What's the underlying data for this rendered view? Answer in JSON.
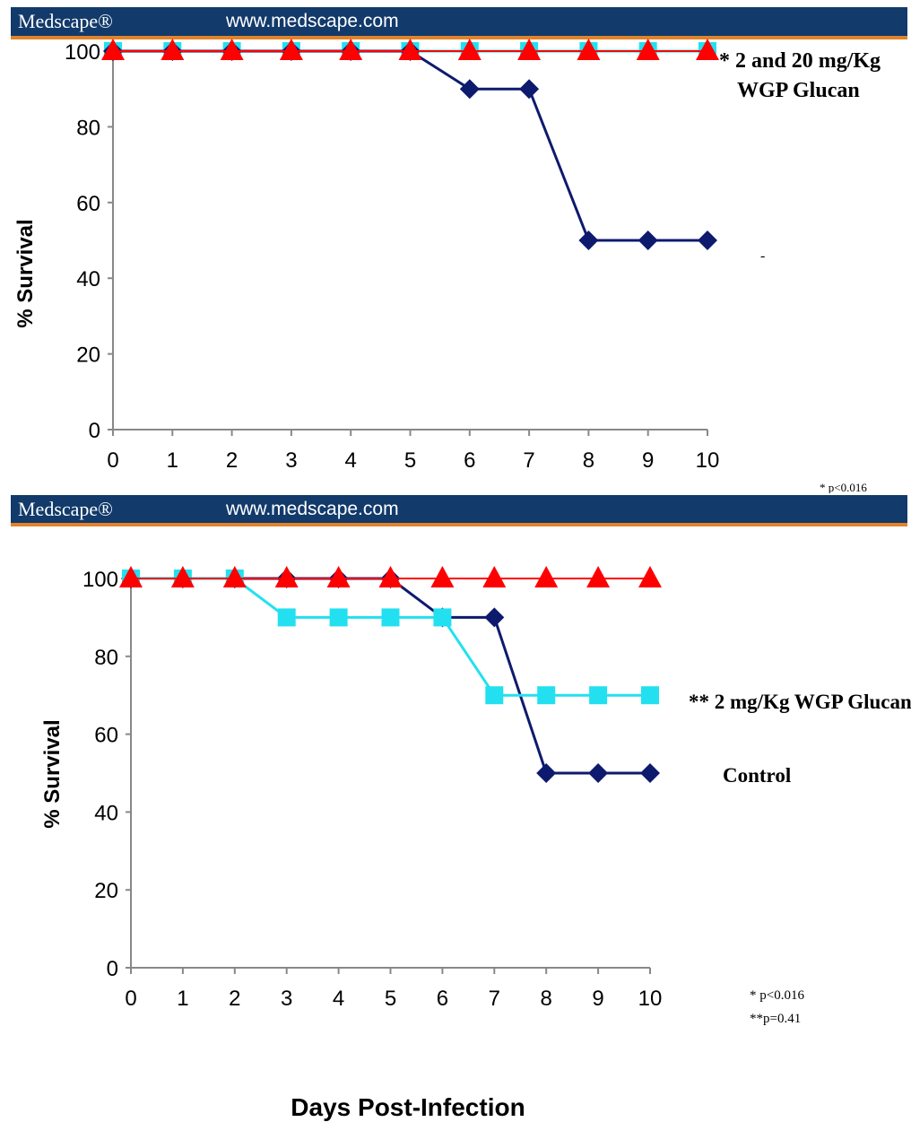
{
  "colors": {
    "banner_bg": "#123a6b",
    "banner_stripe": "#e2832a",
    "axis": "#888888",
    "control": "#0d1a6e",
    "low_dose": "#22e0f0",
    "high_dose": "#ff0000"
  },
  "banners": [
    {
      "brand": "Medscape®",
      "url": "www.medscape.com"
    },
    {
      "brand": "Medscape®",
      "url": "www.medscape.com"
    }
  ],
  "chart_data": [
    {
      "type": "line",
      "ylabel": "% Survival",
      "xlabel": "",
      "x": [
        0,
        1,
        2,
        3,
        4,
        5,
        6,
        7,
        8,
        9,
        10
      ],
      "xlim": [
        0,
        10
      ],
      "ylim": [
        0,
        100
      ],
      "yticks": [
        0,
        20,
        40,
        60,
        80,
        100
      ],
      "series": [
        {
          "marker": "square",
          "color": "#22e0f0",
          "values": [
            100,
            100,
            100,
            100,
            100,
            100,
            100,
            100,
            100,
            100,
            100
          ]
        },
        {
          "marker": "diamond",
          "color": "#0d1a6e",
          "values": [
            100,
            100,
            100,
            100,
            100,
            100,
            90,
            90,
            50,
            50,
            50
          ]
        },
        {
          "marker": "triangle",
          "color": "#ff0000",
          "values": [
            100,
            100,
            100,
            100,
            100,
            100,
            100,
            100,
            100,
            100,
            100
          ]
        }
      ],
      "annotations": [
        "* 2 and 20 mg/Kg",
        "WGP Glucan",
        "-",
        "*  p<0.016"
      ]
    },
    {
      "type": "line",
      "ylabel": "% Survival",
      "xlabel": "Days Post-Infection",
      "x": [
        0,
        1,
        2,
        3,
        4,
        5,
        6,
        7,
        8,
        9,
        10
      ],
      "xlim": [
        0,
        10
      ],
      "ylim": [
        0,
        100
      ],
      "yticks": [
        0,
        20,
        40,
        60,
        80,
        100
      ],
      "series": [
        {
          "name": "Control",
          "marker": "diamond",
          "color": "#0d1a6e",
          "values": [
            100,
            100,
            100,
            100,
            100,
            100,
            90,
            90,
            50,
            50,
            50
          ]
        },
        {
          "name": "** 2 mg/Kg WGP Glucan",
          "marker": "square",
          "color": "#22e0f0",
          "values": [
            100,
            100,
            100,
            90,
            90,
            90,
            90,
            70,
            70,
            70,
            70
          ]
        },
        {
          "marker": "triangle",
          "color": "#ff0000",
          "values": [
            100,
            100,
            100,
            100,
            100,
            100,
            100,
            100,
            100,
            100,
            100
          ]
        }
      ],
      "annotations": [
        "*  p<0.016",
        "**p=0.41"
      ]
    }
  ]
}
